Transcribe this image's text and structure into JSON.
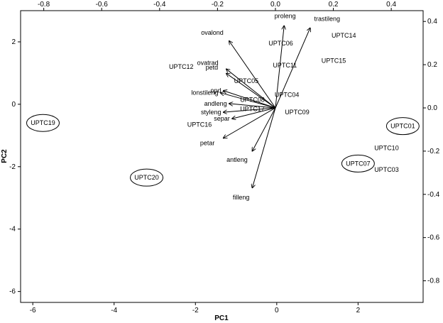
{
  "chart_data": {
    "type": "scatter",
    "subtype": "pca-biplot",
    "xlabel": "PC1",
    "ylabel": "PC2",
    "xlim": [
      -6.3,
      3.6
    ],
    "ylim": [
      -6.35,
      3.0
    ],
    "x2lim": [
      -0.88,
      0.51
    ],
    "y2lim": [
      -0.9,
      0.45
    ],
    "xticks": [
      -6,
      -4,
      -2,
      0,
      2
    ],
    "yticks": [
      -6,
      -4,
      -2,
      0,
      2
    ],
    "x2ticks": [
      -0.8,
      -0.6,
      -0.4,
      -0.2,
      0.0,
      0.2,
      0.4
    ],
    "y2ticks": [
      -0.8,
      -0.6,
      -0.4,
      -0.2,
      0.0,
      0.2,
      0.4
    ],
    "xtick_labels": [
      "-6",
      "-4",
      "-2",
      "0",
      "2"
    ],
    "ytick_labels": [
      "-6",
      "-4",
      "-2",
      "0",
      "2"
    ],
    "x2tick_labels": [
      "-0.8",
      "-0.6",
      "-0.4",
      "-0.2",
      "0.0",
      "0.2",
      "0.4"
    ],
    "y2tick_labels": [
      "-0.8",
      "-0.6",
      "-0.4",
      "-0.2",
      "0.0",
      "0.2",
      "0.4"
    ],
    "grid": false,
    "points": [
      {
        "label": "UPTC19",
        "x": -5.75,
        "y": -0.6,
        "circled": true
      },
      {
        "label": "UPTC20",
        "x": -3.2,
        "y": -2.35,
        "circled": true
      },
      {
        "label": "UPTC01",
        "x": 3.1,
        "y": -0.7,
        "circled": true
      },
      {
        "label": "UPTC07",
        "x": 2.0,
        "y": -1.9,
        "circled": true
      },
      {
        "label": "UPTC10",
        "x": 2.7,
        "y": -1.4,
        "circled": false
      },
      {
        "label": "UPTC03",
        "x": 2.7,
        "y": -2.1,
        "circled": false
      },
      {
        "label": "UPTC14",
        "x": 1.65,
        "y": 2.2,
        "circled": false
      },
      {
        "label": "UPTC15",
        "x": 1.4,
        "y": 1.4,
        "circled": false
      },
      {
        "label": "UPTC06",
        "x": 0.1,
        "y": 1.95,
        "circled": false
      },
      {
        "label": "UPTC11",
        "x": 0.2,
        "y": 1.25,
        "circled": false
      },
      {
        "label": "UPTC05",
        "x": -0.75,
        "y": 0.75,
        "circled": false
      },
      {
        "label": "UPTC04",
        "x": 0.25,
        "y": 0.3,
        "circled": false
      },
      {
        "label": "UPTC09",
        "x": 0.5,
        "y": -0.25,
        "circled": false
      },
      {
        "label": "UPTC08",
        "x": -0.6,
        "y": 0.15,
        "circled": false
      },
      {
        "label": "UPTC17",
        "x": -0.6,
        "y": -0.15,
        "circled": false
      },
      {
        "label": "UPTC12",
        "x": -2.35,
        "y": 1.2,
        "circled": false
      },
      {
        "label": "UPTC16",
        "x": -1.9,
        "y": -0.65,
        "circled": false
      }
    ],
    "loadings": [
      {
        "label": "proleng",
        "x": 0.03,
        "y": 0.38
      },
      {
        "label": "trastileng",
        "x": 0.12,
        "y": 0.37
      },
      {
        "label": "ovalond",
        "x": -0.16,
        "y": 0.31
      },
      {
        "label": "ovatrad",
        "x": -0.17,
        "y": 0.18
      },
      {
        "label": "petd",
        "x": -0.17,
        "y": 0.16
      },
      {
        "label": "opd",
        "x": -0.18,
        "y": 0.08
      },
      {
        "label": "lonstileng",
        "x": -0.19,
        "y": 0.07
      },
      {
        "label": "andleng",
        "x": -0.16,
        "y": 0.02
      },
      {
        "label": "styleng",
        "x": -0.18,
        "y": -0.02
      },
      {
        "label": "separ",
        "x": -0.15,
        "y": -0.05
      },
      {
        "label": "petar",
        "x": -0.18,
        "y": -0.14
      },
      {
        "label": "antleng",
        "x": -0.08,
        "y": -0.2
      },
      {
        "label": "filleng",
        "x": -0.08,
        "y": -0.37
      }
    ]
  }
}
